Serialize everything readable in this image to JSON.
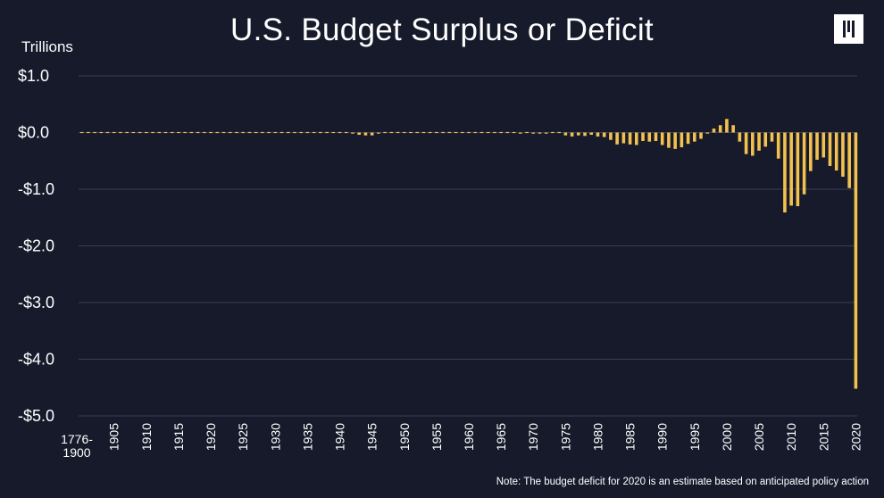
{
  "chart_data": {
    "type": "bar",
    "title": "U.S. Budget Surplus or Deficit",
    "ylabel": "Trillions",
    "ylim": [
      -5.0,
      1.0
    ],
    "y_ticks": [
      1.0,
      0.0,
      -1.0,
      -2.0,
      -3.0,
      -4.0,
      -5.0
    ],
    "y_tick_labels": [
      "$1.0",
      "$0.0",
      "-$1.0",
      "-$2.0",
      "-$3.0",
      "-$4.0",
      "-$5.0"
    ],
    "first_category_label": [
      "1776-",
      "1900"
    ],
    "x_tick_labels": [
      "1905",
      "1910",
      "1915",
      "1920",
      "1925",
      "1930",
      "1935",
      "1940",
      "1945",
      "1950",
      "1955",
      "1960",
      "1965",
      "1970",
      "1975",
      "1980",
      "1985",
      "1990",
      "1995",
      "2000",
      "2005",
      "2010",
      "2015",
      "2020"
    ],
    "categories": [
      "1776-1900",
      "1901",
      "1902",
      "1903",
      "1904",
      "1905",
      "1906",
      "1907",
      "1908",
      "1909",
      "1910",
      "1911",
      "1912",
      "1913",
      "1914",
      "1915",
      "1916",
      "1917",
      "1918",
      "1919",
      "1920",
      "1921",
      "1922",
      "1923",
      "1924",
      "1925",
      "1926",
      "1927",
      "1928",
      "1929",
      "1930",
      "1931",
      "1932",
      "1933",
      "1934",
      "1935",
      "1936",
      "1937",
      "1938",
      "1939",
      "1940",
      "1941",
      "1942",
      "1943",
      "1944",
      "1945",
      "1946",
      "1947",
      "1948",
      "1949",
      "1950",
      "1951",
      "1952",
      "1953",
      "1954",
      "1955",
      "1956",
      "1957",
      "1958",
      "1959",
      "1960",
      "1961",
      "1962",
      "1963",
      "1964",
      "1965",
      "1966",
      "1967",
      "1968",
      "1969",
      "1970",
      "1971",
      "1972",
      "1973",
      "1974",
      "1975",
      "1976",
      "1977",
      "1978",
      "1979",
      "1980",
      "1981",
      "1982",
      "1983",
      "1984",
      "1985",
      "1986",
      "1987",
      "1988",
      "1989",
      "1990",
      "1991",
      "1992",
      "1993",
      "1994",
      "1995",
      "1996",
      "1997",
      "1998",
      "1999",
      "2000",
      "2001",
      "2002",
      "2003",
      "2004",
      "2005",
      "2006",
      "2007",
      "2008",
      "2009",
      "2010",
      "2011",
      "2012",
      "2013",
      "2014",
      "2015",
      "2016",
      "2017",
      "2018",
      "2019",
      "2020"
    ],
    "values": [
      -0.01,
      0.01,
      0.01,
      0.01,
      0.0,
      -0.01,
      0.01,
      0.01,
      -0.01,
      -0.01,
      -0.01,
      0.01,
      0.01,
      0.0,
      0.0,
      -0.01,
      0.0,
      -0.01,
      -0.01,
      -0.01,
      0.01,
      0.01,
      0.01,
      0.01,
      0.01,
      0.01,
      0.01,
      0.01,
      0.01,
      0.01,
      0.01,
      -0.01,
      -0.01,
      -0.01,
      -0.01,
      -0.01,
      -0.01,
      -0.01,
      -0.01,
      -0.01,
      -0.01,
      -0.01,
      -0.02,
      -0.04,
      -0.05,
      -0.05,
      -0.02,
      0.01,
      0.01,
      0.0,
      -0.01,
      0.01,
      -0.01,
      -0.01,
      -0.01,
      -0.01,
      0.01,
      0.01,
      -0.01,
      -0.01,
      0.01,
      -0.01,
      -0.01,
      -0.01,
      -0.01,
      -0.01,
      -0.01,
      -0.01,
      -0.02,
      0.01,
      -0.02,
      -0.02,
      -0.02,
      -0.01,
      -0.01,
      -0.05,
      -0.07,
      -0.05,
      -0.06,
      -0.04,
      -0.07,
      -0.08,
      -0.13,
      -0.21,
      -0.19,
      -0.21,
      -0.22,
      -0.15,
      -0.16,
      -0.15,
      -0.22,
      -0.27,
      -0.29,
      -0.26,
      -0.2,
      -0.16,
      -0.11,
      -0.02,
      0.07,
      0.13,
      0.24,
      0.13,
      -0.16,
      -0.38,
      -0.41,
      -0.32,
      -0.25,
      -0.16,
      -0.46,
      -1.41,
      -1.29,
      -1.3,
      -1.09,
      -0.68,
      -0.48,
      -0.44,
      -0.59,
      -0.67,
      -0.78,
      -0.98,
      -4.52
    ]
  },
  "note": "Note: The budget deficit for 2020 is an estimate based on anticipated policy action",
  "colors": {
    "background": "#161a2b",
    "bar": "#f2c14e",
    "grid": "#3a3f52",
    "text": "#ffffff"
  }
}
